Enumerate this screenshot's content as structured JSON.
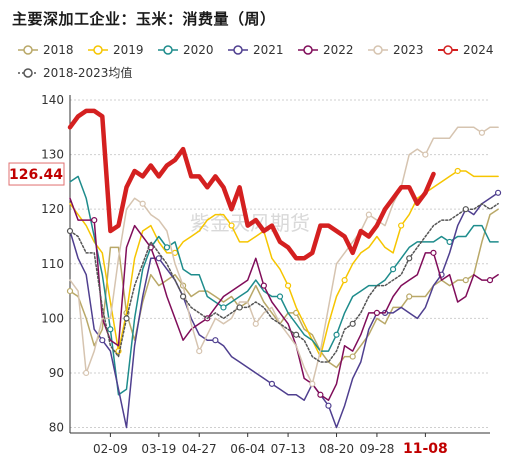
{
  "chart_data": {
    "type": "line",
    "title": "主要深加工企业：玉米：消费量（周）",
    "ylim": [
      79,
      140
    ],
    "yticks": [
      80,
      90,
      100,
      110,
      120,
      130,
      140
    ],
    "xlim": [
      1,
      53
    ],
    "xticks": [
      {
        "label": "02-09",
        "x": 6
      },
      {
        "label": "03-19",
        "x": 12
      },
      {
        "label": "04-27",
        "x": 17
      },
      {
        "label": "06-04",
        "x": 23
      },
      {
        "label": "07-13",
        "x": 28
      },
      {
        "label": "08-20",
        "x": 34
      },
      {
        "label": "09-28",
        "x": 39
      },
      {
        "label": "11-08",
        "x": 45,
        "highlight": true
      }
    ],
    "callout": {
      "text": "126.44",
      "value": 126.44
    },
    "watermark": "紫金天风期货",
    "series": [
      {
        "name": "2018",
        "color": "#b9a868",
        "marker": "circle",
        "width": 1.5,
        "dash": "",
        "values": [
          105,
          104,
          100,
          95,
          98,
          113,
          113,
          101,
          96,
          103,
          108,
          106,
          107,
          108,
          106,
          104,
          105,
          105,
          104,
          103,
          104,
          102,
          103,
          106,
          103,
          101,
          99,
          101,
          101,
          98,
          97,
          94,
          92,
          91,
          93,
          93,
          95,
          97,
          100,
          99,
          102,
          102,
          104,
          104,
          104,
          106,
          107,
          106,
          107,
          107,
          108,
          114,
          119,
          120
        ]
      },
      {
        "name": "2019",
        "color": "#f6c500",
        "marker": "circle",
        "width": 1.5,
        "dash": "",
        "values": [
          121,
          119,
          117,
          114,
          112,
          103,
          94,
          101,
          111,
          116,
          117,
          114,
          112,
          112,
          114,
          115,
          116,
          118,
          119,
          119,
          117,
          114,
          114,
          115,
          116,
          111,
          109,
          106,
          102,
          99,
          96,
          93,
          99,
          104,
          107,
          110,
          112,
          113,
          115,
          113,
          112,
          117,
          119,
          122,
          123,
          124,
          125,
          126,
          127,
          127,
          126,
          126,
          126,
          126
        ]
      },
      {
        "name": "2020",
        "color": "#1e8c8c",
        "marker": "circle",
        "width": 1.5,
        "dash": "",
        "values": [
          125,
          126,
          122,
          115,
          108,
          98,
          86,
          87,
          100,
          109,
          113,
          115,
          113,
          114,
          109,
          108,
          108,
          104,
          103,
          102,
          103,
          104,
          105,
          107,
          105,
          104,
          104,
          101,
          99,
          97,
          96,
          94,
          94,
          97,
          101,
          104,
          105,
          106,
          106,
          107,
          109,
          111,
          113,
          114,
          114,
          114,
          115,
          114,
          115,
          115,
          117,
          117,
          114,
          114
        ]
      },
      {
        "name": "2021",
        "color": "#4f3f8f",
        "marker": "circle",
        "width": 1.5,
        "dash": "",
        "values": [
          116,
          111,
          108,
          98,
          96,
          94,
          87,
          80,
          95,
          104,
          111,
          111,
          109,
          107,
          104,
          100,
          97,
          96,
          96,
          95,
          93,
          92,
          91,
          90,
          89,
          88,
          87,
          86,
          86,
          85,
          88,
          86,
          84,
          80,
          84,
          89,
          92,
          98,
          101,
          101,
          101,
          102,
          101,
          100,
          102,
          106,
          108,
          112,
          117,
          120,
          119,
          121,
          122,
          123
        ]
      },
      {
        "name": "2022",
        "color": "#800d5a",
        "marker": "circle",
        "width": 1.5,
        "dash": "",
        "values": [
          122,
          118,
          118,
          118,
          100,
          96,
          95,
          113,
          117,
          115,
          113,
          109,
          104,
          100,
          96,
          98,
          99,
          100,
          102,
          104,
          105,
          106,
          107,
          111,
          106,
          103,
          101,
          99,
          95,
          89,
          88,
          86,
          85,
          88,
          95,
          94,
          97,
          101,
          101,
          101,
          104,
          106,
          107,
          108,
          112,
          112,
          107,
          108,
          103,
          104,
          108,
          107,
          107,
          108
        ]
      },
      {
        "name": "2023",
        "color": "#d6c4b0",
        "marker": "circle",
        "width": 1.5,
        "dash": "",
        "values": [
          107,
          105,
          90,
          94,
          100,
          100,
          111,
          120,
          122,
          121,
          119,
          118,
          116,
          110,
          106,
          99,
          94,
          97,
          100,
          99,
          100,
          103,
          103,
          99,
          101,
          102,
          99,
          97,
          95,
          91,
          88,
          94,
          102,
          110,
          112,
          114,
          116,
          119,
          118,
          117,
          121,
          124,
          130,
          131,
          130,
          133,
          133,
          133,
          135,
          135,
          135,
          134,
          135,
          135
        ]
      },
      {
        "name": "2024",
        "color": "#d42020",
        "marker": "circle",
        "width": 4.5,
        "dash": "",
        "values": [
          135,
          137,
          138,
          138,
          137,
          116,
          117,
          124,
          127,
          126,
          128,
          126,
          128,
          129,
          131,
          126,
          126,
          124,
          126,
          124,
          120,
          124,
          117,
          118,
          116,
          117,
          114,
          113,
          111,
          111,
          112,
          117,
          117,
          116,
          115,
          112,
          116,
          115,
          117,
          120,
          122,
          124,
          124,
          121,
          123,
          126.44
        ]
      },
      {
        "name": "2018-2023均值",
        "color": "#555555",
        "marker": "open-circle",
        "width": 1.5,
        "dash": "2,2",
        "values": [
          116,
          115,
          112,
          112,
          102,
          95,
          93,
          100,
          106,
          110,
          114,
          112,
          110,
          107,
          104,
          102,
          101,
          100,
          101,
          100,
          101,
          102,
          102,
          103,
          102,
          100,
          99,
          98,
          97,
          96,
          93,
          92,
          92,
          94,
          98,
          99,
          101,
          104,
          106,
          106,
          107,
          108,
          111,
          113,
          115,
          117,
          118,
          118,
          119,
          120,
          120,
          121,
          120,
          121
        ]
      }
    ]
  }
}
